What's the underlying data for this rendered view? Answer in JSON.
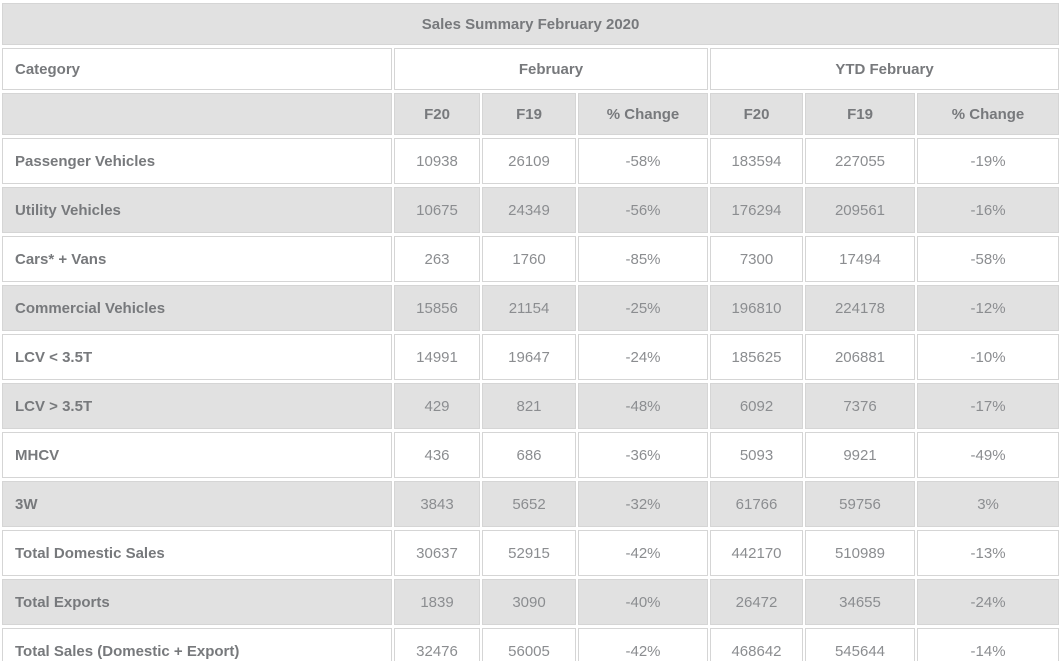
{
  "colors": {
    "stripe": "#e1e1e1",
    "border": "#d5d5d5",
    "heading": "#77797c",
    "number": "#8b8d90",
    "bg": "#ffffff"
  },
  "chart_data": {
    "type": "table",
    "title": "Sales Summary February 2020",
    "category_header": "Category",
    "column_groups": [
      {
        "label": "February",
        "span": 3
      },
      {
        "label": "YTD February",
        "span": 3
      }
    ],
    "sub_headers": [
      "F20",
      "F19",
      "% Change",
      "F20",
      "F19",
      "% Change"
    ],
    "rows": [
      {
        "category": "Passenger Vehicles",
        "values": [
          "10938",
          "26109",
          "-58%",
          "183594",
          "227055",
          "-19%"
        ]
      },
      {
        "category": "Utility Vehicles",
        "values": [
          "10675",
          "24349",
          "-56%",
          "176294",
          "209561",
          "-16%"
        ]
      },
      {
        "category": "Cars* + Vans",
        "values": [
          "263",
          "1760",
          "-85%",
          "7300",
          "17494",
          "-58%"
        ]
      },
      {
        "category": "Commercial Vehicles",
        "values": [
          "15856",
          "21154",
          "-25%",
          "196810",
          "224178",
          "-12%"
        ]
      },
      {
        "category": "LCV < 3.5T",
        "values": [
          "14991",
          "19647",
          "-24%",
          "185625",
          "206881",
          "-10%"
        ]
      },
      {
        "category": "LCV > 3.5T",
        "values": [
          "429",
          "821",
          "-48%",
          "6092",
          "7376",
          "-17%"
        ]
      },
      {
        "category": "MHCV",
        "values": [
          "436",
          "686",
          "-36%",
          "5093",
          "9921",
          "-49%"
        ]
      },
      {
        "category": "3W",
        "values": [
          "3843",
          "5652",
          "-32%",
          "61766",
          "59756",
          "3%"
        ]
      },
      {
        "category": "Total Domestic Sales",
        "values": [
          "30637",
          "52915",
          "-42%",
          "442170",
          "510989",
          "-13%"
        ]
      },
      {
        "category": "Total Exports",
        "values": [
          "1839",
          "3090",
          "-40%",
          "26472",
          "34655",
          "-24%"
        ]
      },
      {
        "category": "Total Sales (Domestic + Export)",
        "values": [
          "32476",
          "56005",
          "-42%",
          "468642",
          "545644",
          "-14%"
        ]
      }
    ]
  }
}
